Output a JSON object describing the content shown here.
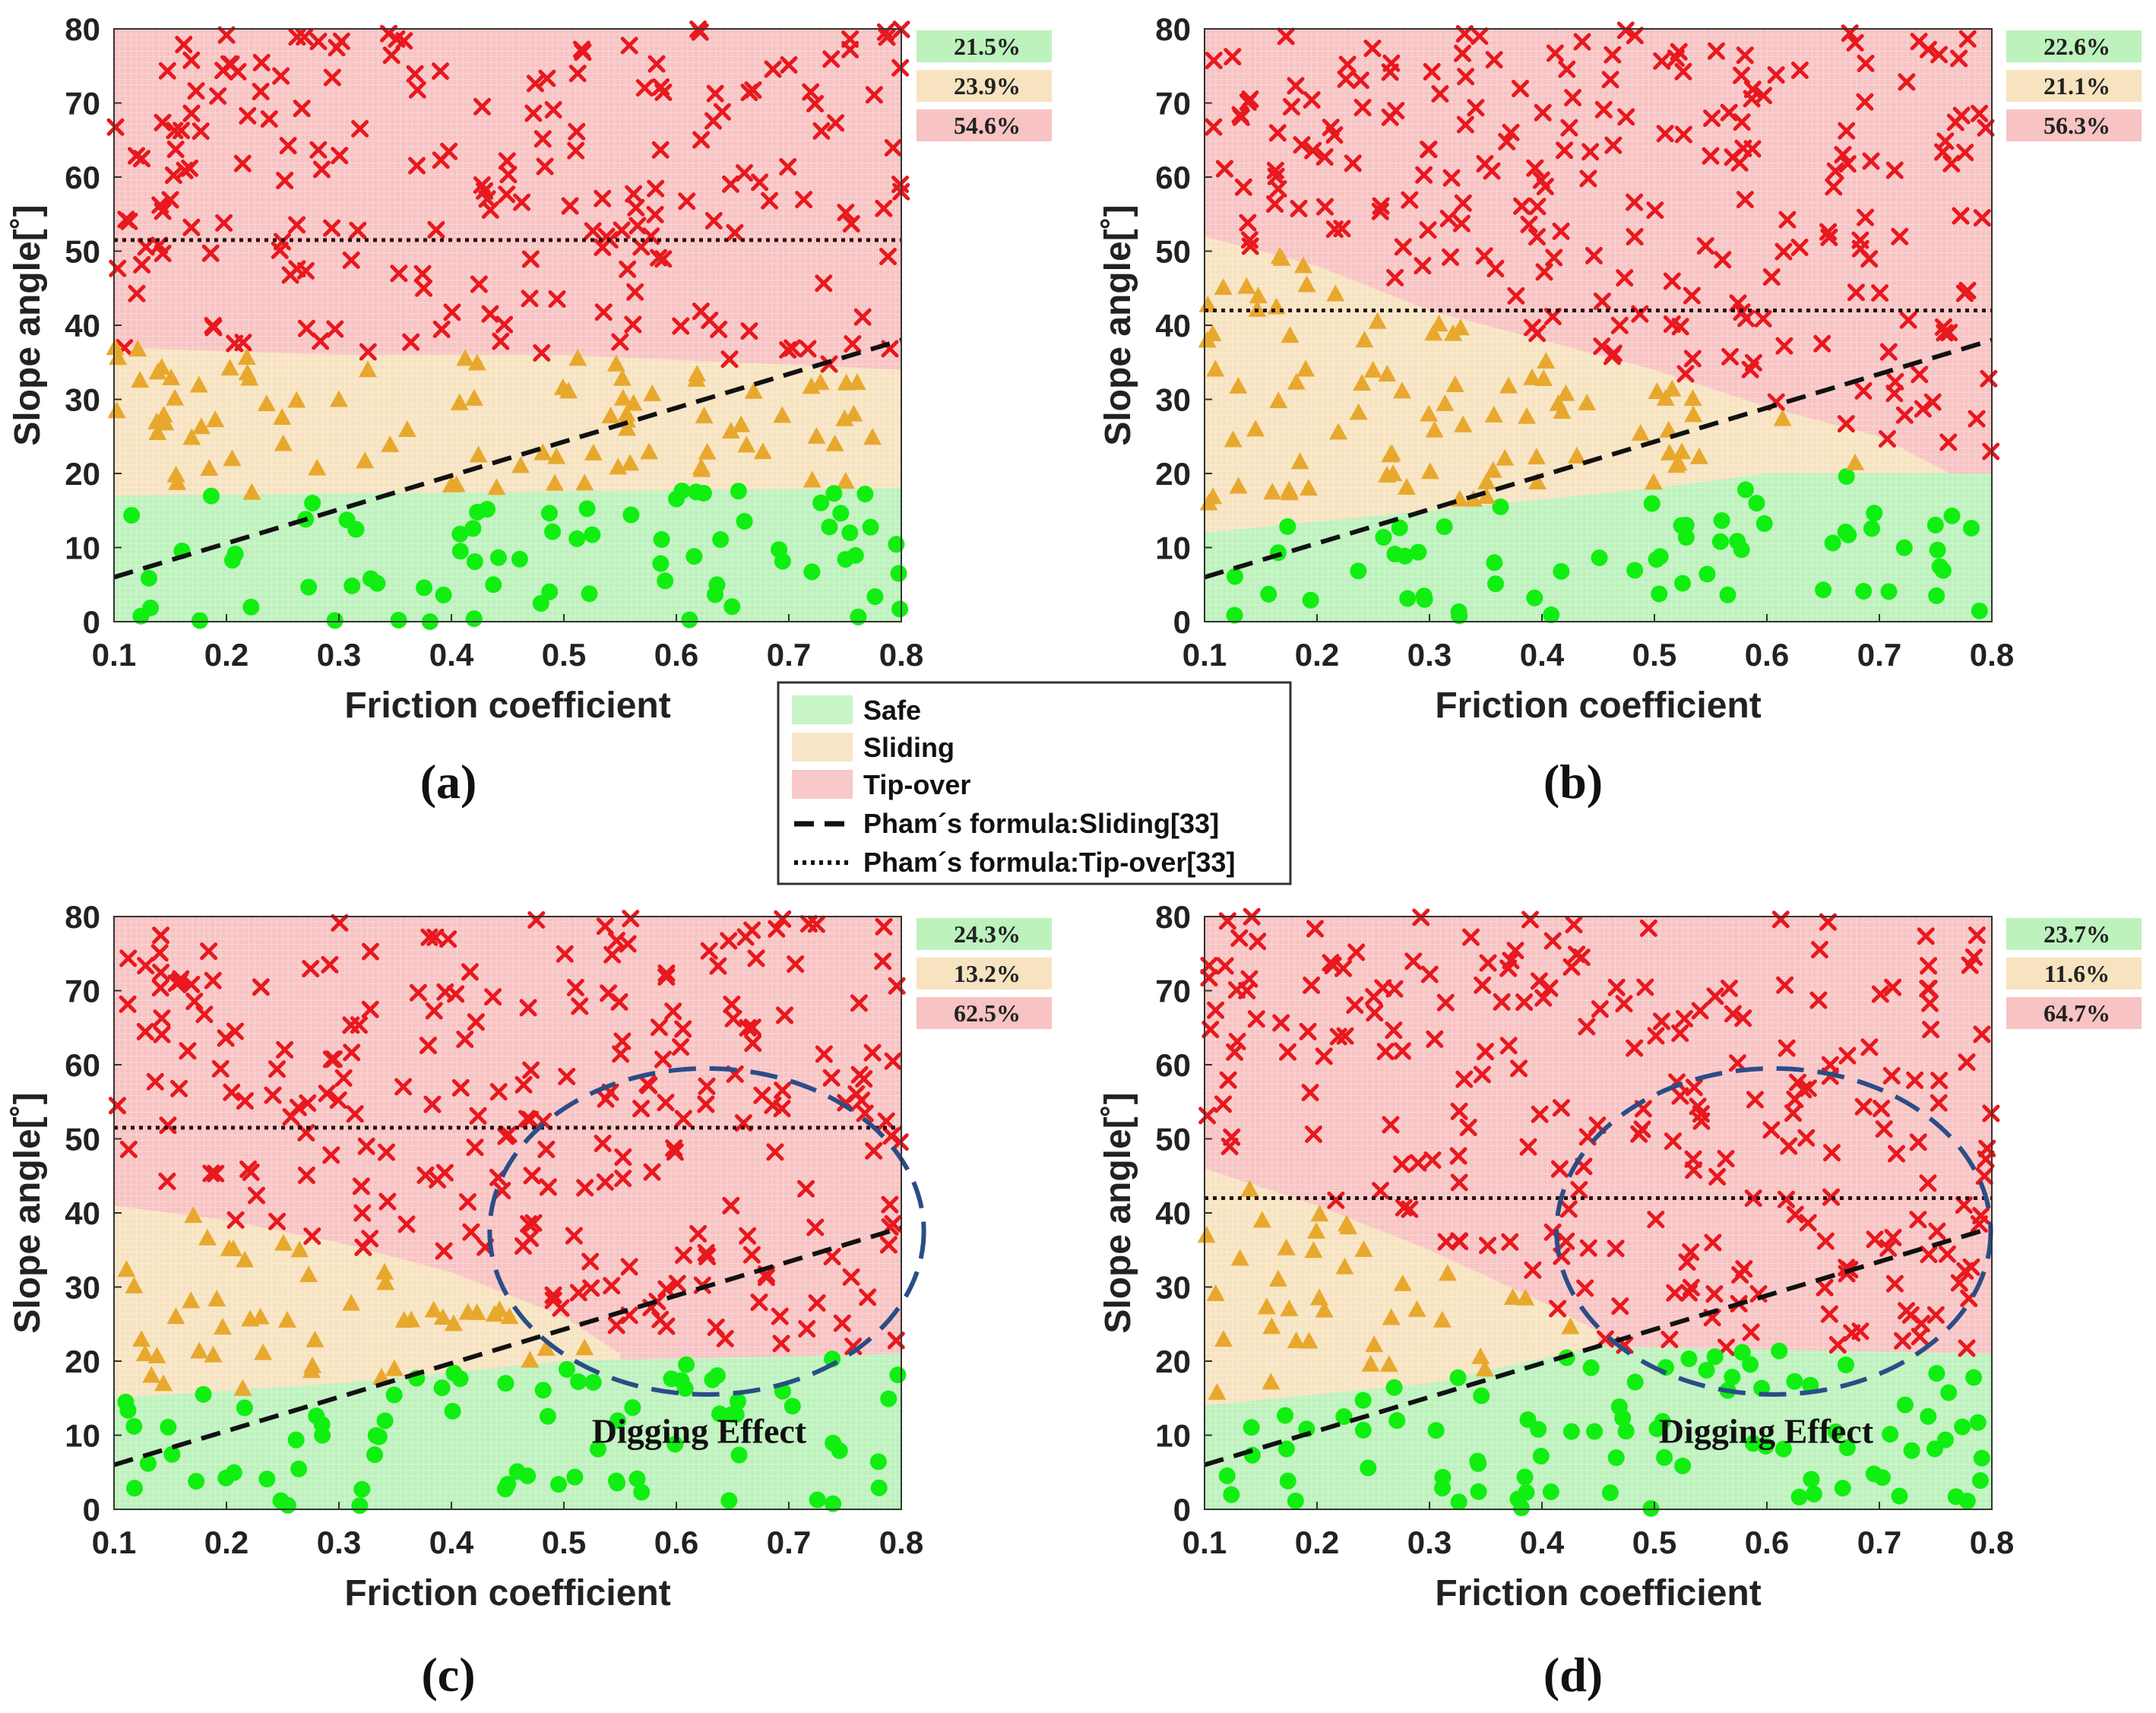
{
  "chart_data": [
    {
      "type": "scatter",
      "id": "a",
      "caption": "(a)",
      "xlabel": "Friction coefficient",
      "ylabel": "Slope angle[˚]",
      "xlim": [
        0.1,
        0.8
      ],
      "ylim": [
        0,
        80
      ],
      "xticks": [
        "0.1",
        "0.2",
        "0.3",
        "0.4",
        "0.5",
        "0.6",
        "0.7",
        "0.8"
      ],
      "yticks": [
        "0",
        "10",
        "20",
        "30",
        "40",
        "50",
        "60",
        "70",
        "80"
      ],
      "percentages": [
        "21.5%",
        "23.9%",
        "54.6%"
      ],
      "region_boundaries": {
        "safe_top": [
          [
            0.1,
            17
          ],
          [
            0.8,
            18
          ]
        ],
        "sliding_top": [
          [
            0.1,
            37
          ],
          [
            0.3,
            36
          ],
          [
            0.5,
            36
          ],
          [
            0.8,
            34
          ]
        ]
      },
      "sliding_line": [
        [
          0.1,
          6
        ],
        [
          0.8,
          38
        ]
      ],
      "tipover_line": 51.5,
      "annotation": null
    },
    {
      "type": "scatter",
      "id": "b",
      "caption": "(b)",
      "xlabel": "Friction coefficient",
      "ylabel": "Slope angle[˚]",
      "xlim": [
        0.1,
        0.8
      ],
      "ylim": [
        0,
        80
      ],
      "xticks": [
        "0.1",
        "0.2",
        "0.3",
        "0.4",
        "0.5",
        "0.6",
        "0.7",
        "0.8"
      ],
      "yticks": [
        "0",
        "10",
        "20",
        "30",
        "40",
        "50",
        "60",
        "70",
        "80"
      ],
      "percentages": [
        "22.6%",
        "21.1%",
        "56.3%"
      ],
      "region_boundaries": {
        "safe_top": [
          [
            0.1,
            12
          ],
          [
            0.3,
            15
          ],
          [
            0.5,
            18
          ],
          [
            0.6,
            20
          ],
          [
            0.8,
            20
          ]
        ],
        "sliding_top": [
          [
            0.1,
            52
          ],
          [
            0.2,
            48
          ],
          [
            0.3,
            42
          ],
          [
            0.4,
            38
          ],
          [
            0.5,
            34
          ],
          [
            0.6,
            29
          ],
          [
            0.7,
            25
          ],
          [
            0.8,
            17
          ]
        ]
      },
      "sliding_line": [
        [
          0.1,
          6
        ],
        [
          0.8,
          38
        ]
      ],
      "tipover_line": 42,
      "annotation": null
    },
    {
      "type": "scatter",
      "id": "c",
      "caption": "(c)",
      "xlabel": "Friction coefficient",
      "ylabel": "Slope angle[˚]",
      "xlim": [
        0.1,
        0.8
      ],
      "ylim": [
        0,
        80
      ],
      "xticks": [
        "0.1",
        "0.2",
        "0.3",
        "0.4",
        "0.5",
        "0.6",
        "0.7",
        "0.8"
      ],
      "yticks": [
        "0",
        "10",
        "20",
        "30",
        "40",
        "50",
        "60",
        "70",
        "80"
      ],
      "percentages": [
        "24.3%",
        "13.2%",
        "62.5%"
      ],
      "region_boundaries": {
        "safe_top": [
          [
            0.1,
            15
          ],
          [
            0.3,
            17
          ],
          [
            0.5,
            20
          ],
          [
            0.8,
            21
          ]
        ],
        "sliding_top": [
          [
            0.1,
            41
          ],
          [
            0.2,
            39
          ],
          [
            0.3,
            36
          ],
          [
            0.4,
            32
          ],
          [
            0.5,
            26
          ],
          [
            0.55,
            21
          ]
        ]
      },
      "sliding_line": [
        [
          0.1,
          6
        ],
        [
          0.8,
          38
        ]
      ],
      "tipover_line": 51.5,
      "annotation": {
        "text": "Digging Effect",
        "ellipse_center": [
          0.627,
          37.5
        ],
        "ellipse_radii": [
          0.193,
          22
        ]
      }
    },
    {
      "type": "scatter",
      "id": "d",
      "caption": "(d)",
      "xlabel": "Friction coefficient",
      "ylabel": "Slope angle[˚]",
      "xlim": [
        0.1,
        0.8
      ],
      "ylim": [
        0,
        80
      ],
      "xticks": [
        "0.1",
        "0.2",
        "0.3",
        "0.4",
        "0.5",
        "0.6",
        "0.7",
        "0.8"
      ],
      "yticks": [
        "0",
        "10",
        "20",
        "30",
        "40",
        "50",
        "60",
        "70",
        "80"
      ],
      "percentages": [
        "23.7%",
        "11.6%",
        "64.7%"
      ],
      "region_boundaries": {
        "safe_top": [
          [
            0.1,
            14
          ],
          [
            0.3,
            17
          ],
          [
            0.45,
            22
          ],
          [
            0.8,
            21
          ]
        ],
        "sliding_top": [
          [
            0.1,
            46
          ],
          [
            0.2,
            41
          ],
          [
            0.3,
            35
          ],
          [
            0.4,
            28
          ],
          [
            0.45,
            24
          ]
        ]
      },
      "sliding_line": [
        [
          0.1,
          6
        ],
        [
          0.8,
          38
        ]
      ],
      "tipover_line": 42,
      "annotation": {
        "text": "Digging Effect",
        "ellipse_center": [
          0.606,
          37.5
        ],
        "ellipse_radii": [
          0.193,
          22
        ]
      }
    }
  ],
  "legend": {
    "items": [
      {
        "label": "Safe",
        "kind": "patch",
        "color": "#c8f5c8"
      },
      {
        "label": "Sliding",
        "kind": "patch",
        "color": "#f9e6c8"
      },
      {
        "label": "Tip-over",
        "kind": "patch",
        "color": "#f9c8c8"
      },
      {
        "label": "Pham´s formula:Sliding[33]",
        "kind": "dashed"
      },
      {
        "label": "Pham´s formula:Tip-over[33]",
        "kind": "dotted"
      }
    ]
  },
  "colors": {
    "safe_region": "#bdf2bd",
    "sliding_region": "#f7e3c0",
    "tipover_region": "#f8c3c3",
    "safe_marker": "#11ee11",
    "sliding_marker": "#e8a82e",
    "tipover_marker": "#e8181e",
    "ellipse": "#2b4d86"
  },
  "marker_shapes": {
    "safe": "circle",
    "sliding": "triangle",
    "tipover": "cross"
  }
}
